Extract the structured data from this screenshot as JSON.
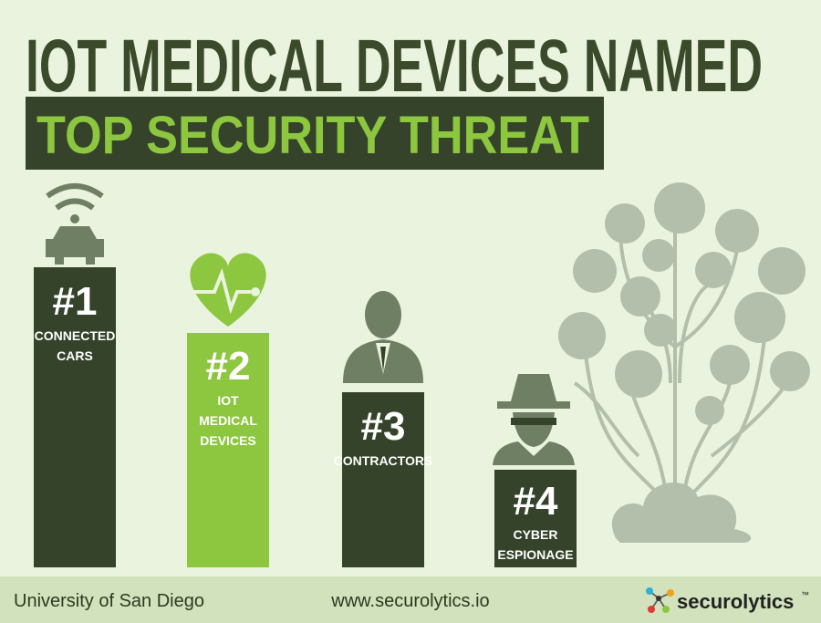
{
  "header": {
    "title": "IOT MEDICAL DEVICES NAMED",
    "subtitle": "TOP SECURITY THREAT"
  },
  "ranks": [
    {
      "rank": "#1",
      "label": [
        "CONNECTED",
        "CARS"
      ]
    },
    {
      "rank": "#2",
      "label": [
        "IOT",
        "MEDICAL",
        "DEVICES"
      ]
    },
    {
      "rank": "#3",
      "label": [
        "CONTRACTORS"
      ]
    },
    {
      "rank": "#4",
      "label": [
        "CYBER",
        "ESPIONAGE"
      ]
    }
  ],
  "footer": {
    "source": "University of San Diego",
    "url": "www.securolytics.io",
    "brand": "securolytics",
    "trademark": "™"
  }
}
